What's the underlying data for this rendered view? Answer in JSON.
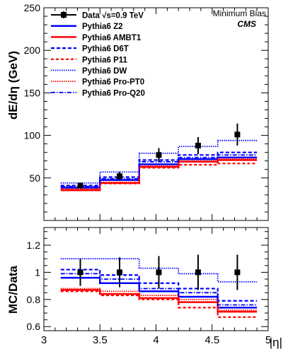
{
  "chart_data": [
    {
      "type": "line",
      "panel": "top",
      "ylabel": "dE/dη (GeV)",
      "ylim": [
        0,
        250
      ],
      "yticks": [
        "50",
        "100",
        "150",
        "200",
        "250"
      ],
      "annotation": [
        "Minimum Bias",
        "CMS"
      ],
      "bins": [
        [
          3.15,
          3.5
        ],
        [
          3.5,
          3.85
        ],
        [
          3.85,
          4.2
        ],
        [
          4.2,
          4.55
        ],
        [
          4.55,
          4.9
        ]
      ],
      "data": {
        "name": "Data √s=0.9 TeV",
        "x": [
          3.325,
          3.675,
          4.025,
          4.375,
          4.725
        ],
        "y": [
          41,
          52,
          77,
          88,
          101
        ],
        "err": [
          3,
          5,
          8,
          10,
          13
        ]
      },
      "series": [
        {
          "name": "Pythia6 Z2",
          "style": "solid-blue",
          "values": [
            38.5,
            47.5,
            66,
            72,
            74
          ]
        },
        {
          "name": "Pythia6 AMBT1",
          "style": "solid-red",
          "values": [
            35.5,
            44,
            63,
            69,
            71
          ]
        },
        {
          "name": "Pythia6 D6T",
          "style": "dash-blue",
          "values": [
            41,
            51,
            71,
            77,
            80
          ]
        },
        {
          "name": "Pythia6 P11",
          "style": "dash-red",
          "values": [
            36,
            43.5,
            62,
            65.5,
            67
          ]
        },
        {
          "name": "Pythia6 DW",
          "style": "dot-blue",
          "values": [
            44,
            57,
            79,
            87,
            94
          ]
        },
        {
          "name": "Pythia6 Pro-PT0",
          "style": "dot-red",
          "values": [
            37,
            45,
            64,
            70,
            72.5
          ]
        },
        {
          "name": "Pythia6 Pro-Q20",
          "style": "dashdot-blue",
          "values": [
            40,
            49,
            69,
            74,
            77
          ]
        }
      ]
    },
    {
      "type": "line",
      "panel": "bottom",
      "ylabel": "MC/Data",
      "xlabel": "|η|",
      "xlim": [
        3,
        5
      ],
      "ylim": [
        0.57,
        1.33
      ],
      "xticks": [
        "3",
        "3.5",
        "4",
        "4.5",
        "5"
      ],
      "yticks": [
        "0.6",
        "0.8",
        "1",
        "1.2"
      ],
      "data": {
        "x": [
          3.325,
          3.675,
          4.025,
          4.375,
          4.725
        ],
        "y": [
          1,
          1,
          1,
          1,
          1
        ],
        "err": [
          0.1,
          0.11,
          0.12,
          0.13,
          0.13
        ]
      },
      "series": [
        {
          "name": "Pythia6 Z2",
          "style": "solid-blue",
          "values": [
            0.96,
            0.92,
            0.86,
            0.82,
            0.74
          ]
        },
        {
          "name": "Pythia6 AMBT1",
          "style": "solid-red",
          "values": [
            0.87,
            0.84,
            0.81,
            0.78,
            0.71
          ]
        },
        {
          "name": "Pythia6 D6T",
          "style": "dash-blue",
          "values": [
            1.02,
            0.98,
            0.92,
            0.88,
            0.79
          ]
        },
        {
          "name": "Pythia6 P11",
          "style": "dash-red",
          "values": [
            0.86,
            0.83,
            0.8,
            0.74,
            0.67
          ]
        },
        {
          "name": "Pythia6 DW",
          "style": "dot-blue",
          "values": [
            1.1,
            1.1,
            1.03,
            0.99,
            0.93
          ]
        },
        {
          "name": "Pythia6 Pro-PT0",
          "style": "dot-red",
          "values": [
            0.88,
            0.86,
            0.83,
            0.8,
            0.72
          ]
        },
        {
          "name": "Pythia6 Pro-Q20",
          "style": "dashdot-blue",
          "values": [
            0.99,
            0.95,
            0.88,
            0.85,
            0.76
          ]
        }
      ]
    }
  ],
  "colors": {
    "blue": "#0000ff",
    "red": "#ff0000",
    "black": "#000000"
  }
}
